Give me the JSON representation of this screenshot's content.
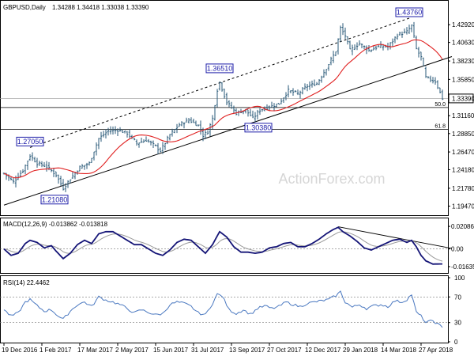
{
  "chart_data": [
    {
      "type": "candlestick",
      "title": "GBPUSD,Daily",
      "ohlc_text": "1.34288 1.34418 1.33038 1.33390",
      "ylim": [
        1.185,
        1.455
      ],
      "y_ticks": [
        "1.42920",
        "1.40630",
        "1.38230",
        "1.35850",
        "1.33390",
        "1.31160",
        "1.28850",
        "1.26470",
        "1.24180",
        "1.21780",
        "1.19470"
      ],
      "y_tick_values": [
        1.4292,
        1.4063,
        1.3823,
        1.3585,
        1.3339,
        1.3116,
        1.2885,
        1.2647,
        1.2418,
        1.2178,
        1.1947
      ],
      "last_price": "1.33390",
      "fib_levels": [
        {
          "label": "50.0",
          "value": 1.3222
        },
        {
          "label": "61.8",
          "value": 1.2938
        }
      ],
      "annotations": [
        {
          "label": "1.27050",
          "index": 11,
          "value": 1.2705
        },
        {
          "label": "1.21080",
          "index": 25,
          "value": 1.2108
        },
        {
          "label": "1.36510",
          "index": 91,
          "value": 1.3651
        },
        {
          "label": "1.30380",
          "index": 105,
          "value": 1.3038
        },
        {
          "label": "1.43760",
          "index": 171,
          "value": 1.4376
        }
      ],
      "x_labels": [
        "19 Dec 2016",
        "1 Feb 2017",
        "17 Mar 2017",
        "2 May 2017",
        "15 Jun 2017",
        "31 Jul 2017",
        "13 Sep 2017",
        "27 Oct 2017",
        "12 Dec 2017",
        "29 Jan 2018",
        "14 Mar 2018",
        "27 Apr 2018"
      ],
      "x_label_index": [
        0,
        16,
        32,
        48,
        64,
        80,
        96,
        112,
        128,
        144,
        160,
        176
      ],
      "close_anchors": [
        [
          0,
          1.237
        ],
        [
          4,
          1.226
        ],
        [
          8,
          1.241
        ],
        [
          11,
          1.26
        ],
        [
          14,
          1.25
        ],
        [
          18,
          1.246
        ],
        [
          22,
          1.235
        ],
        [
          25,
          1.218
        ],
        [
          28,
          1.23
        ],
        [
          32,
          1.245
        ],
        [
          36,
          1.25
        ],
        [
          40,
          1.282
        ],
        [
          44,
          1.292
        ],
        [
          48,
          1.293
        ],
        [
          52,
          1.289
        ],
        [
          56,
          1.276
        ],
        [
          60,
          1.28
        ],
        [
          64,
          1.272
        ],
        [
          66,
          1.266
        ],
        [
          70,
          1.287
        ],
        [
          74,
          1.3
        ],
        [
          78,
          1.306
        ],
        [
          82,
          1.299
        ],
        [
          84,
          1.286
        ],
        [
          86,
          1.291
        ],
        [
          88,
          1.308
        ],
        [
          90,
          1.345
        ],
        [
          91,
          1.355
        ],
        [
          94,
          1.329
        ],
        [
          98,
          1.315
        ],
        [
          102,
          1.319
        ],
        [
          105,
          1.308
        ],
        [
          108,
          1.319
        ],
        [
          112,
          1.323
        ],
        [
          116,
          1.327
        ],
        [
          120,
          1.344
        ],
        [
          124,
          1.34
        ],
        [
          128,
          1.35
        ],
        [
          132,
          1.353
        ],
        [
          136,
          1.373
        ],
        [
          140,
          1.395
        ],
        [
          142,
          1.425
        ],
        [
          144,
          1.415
        ],
        [
          146,
          1.396
        ],
        [
          150,
          1.405
        ],
        [
          154,
          1.396
        ],
        [
          158,
          1.401
        ],
        [
          162,
          1.401
        ],
        [
          166,
          1.416
        ],
        [
          170,
          1.42
        ],
        [
          172,
          1.428
        ],
        [
          174,
          1.398
        ],
        [
          176,
          1.387
        ],
        [
          178,
          1.361
        ],
        [
          182,
          1.356
        ],
        [
          185,
          1.3339
        ]
      ],
      "series": [
        {
          "name": "GBPUSD,Daily",
          "color": "#2a5a78"
        },
        {
          "color": "#e02020"
        }
      ],
      "trendlines": [
        {
          "style": "solid",
          "from": [
            0,
            1.196
          ],
          "to": [
            189,
            1.388
          ]
        },
        {
          "style": "dashed",
          "from": [
            11,
            1.2705
          ],
          "to": [
            171,
            1.4376
          ]
        }
      ]
    },
    {
      "type": "line",
      "title": "MACD(12,26,9) -0.013862 -0.013818",
      "ylim": [
        -0.0215,
        0.0268
      ],
      "y_ticks": [
        "0.020861",
        "0.00",
        "-0.016357"
      ],
      "y_tick_values": [
        0.020861,
        0.0,
        -0.016357
      ],
      "macd_anchors": [
        [
          0,
          0.0
        ],
        [
          3,
          -0.006
        ],
        [
          6,
          -0.004
        ],
        [
          9,
          0.005
        ],
        [
          11,
          0.008
        ],
        [
          14,
          0.006
        ],
        [
          17,
          0.001
        ],
        [
          20,
          0.003
        ],
        [
          22,
          -0.002
        ],
        [
          25,
          -0.009
        ],
        [
          28,
          -0.004
        ],
        [
          31,
          0.004
        ],
        [
          34,
          0.008
        ],
        [
          37,
          0.005
        ],
        [
          40,
          0.014
        ],
        [
          43,
          0.016
        ],
        [
          46,
          0.016
        ],
        [
          49,
          0.012
        ],
        [
          52,
          0.008
        ],
        [
          55,
          0.004
        ],
        [
          58,
          0.004
        ],
        [
          61,
          0.0
        ],
        [
          64,
          -0.004
        ],
        [
          67,
          -0.006
        ],
        [
          70,
          -0.001
        ],
        [
          73,
          0.006
        ],
        [
          76,
          0.009
        ],
        [
          79,
          0.008
        ],
        [
          82,
          0.002
        ],
        [
          85,
          -0.004
        ],
        [
          88,
          0.004
        ],
        [
          91,
          0.016
        ],
        [
          94,
          0.011
        ],
        [
          97,
          0.002
        ],
        [
          100,
          -0.003
        ],
        [
          103,
          -0.003
        ],
        [
          106,
          -0.004
        ],
        [
          109,
          -0.003
        ],
        [
          112,
          0.001
        ],
        [
          115,
          0.002
        ],
        [
          118,
          0.005
        ],
        [
          121,
          0.006
        ],
        [
          124,
          0.002
        ],
        [
          127,
          0.002
        ],
        [
          130,
          0.005
        ],
        [
          133,
          0.009
        ],
        [
          136,
          0.014
        ],
        [
          139,
          0.018
        ],
        [
          141,
          0.02
        ],
        [
          143,
          0.016
        ],
        [
          146,
          0.012
        ],
        [
          149,
          0.007
        ],
        [
          152,
          0.001
        ],
        [
          155,
          -0.001
        ],
        [
          158,
          0.002
        ],
        [
          161,
          0.005
        ],
        [
          164,
          0.008
        ],
        [
          167,
          0.009
        ],
        [
          170,
          0.006
        ],
        [
          172,
          0.008
        ],
        [
          174,
          0.002
        ],
        [
          176,
          -0.006
        ],
        [
          178,
          -0.011
        ],
        [
          181,
          -0.014
        ],
        [
          185,
          -0.0139
        ]
      ],
      "series": [
        {
          "name": "MACD",
          "color": "#151577"
        },
        {
          "color": "#9a9a9a"
        }
      ],
      "trendlines": [
        {
          "style": "solid",
          "from": [
            141,
            0.0205
          ],
          "to": [
            189,
            0.0005
          ]
        }
      ]
    },
    {
      "type": "line",
      "title": "RSI(14) 22.4462",
      "ylim": [
        0,
        100
      ],
      "y_ticks": [
        "100",
        "70",
        "30",
        "0"
      ],
      "y_tick_values": [
        100,
        70,
        30,
        0
      ],
      "rsi_anchors": [
        [
          0,
          50
        ],
        [
          3,
          40
        ],
        [
          6,
          45
        ],
        [
          9,
          62
        ],
        [
          11,
          66
        ],
        [
          14,
          56
        ],
        [
          17,
          48
        ],
        [
          20,
          50
        ],
        [
          23,
          40
        ],
        [
          25,
          35
        ],
        [
          28,
          48
        ],
        [
          31,
          58
        ],
        [
          34,
          62
        ],
        [
          37,
          55
        ],
        [
          40,
          70
        ],
        [
          43,
          65
        ],
        [
          46,
          62
        ],
        [
          49,
          58
        ],
        [
          52,
          52
        ],
        [
          55,
          45
        ],
        [
          58,
          50
        ],
        [
          61,
          46
        ],
        [
          64,
          42
        ],
        [
          67,
          44
        ],
        [
          70,
          58
        ],
        [
          73,
          62
        ],
        [
          76,
          60
        ],
        [
          79,
          55
        ],
        [
          82,
          45
        ],
        [
          85,
          42
        ],
        [
          88,
          60
        ],
        [
          90,
          74
        ],
        [
          92,
          72
        ],
        [
          95,
          50
        ],
        [
          98,
          44
        ],
        [
          101,
          50
        ],
        [
          104,
          43
        ],
        [
          107,
          52
        ],
        [
          110,
          56
        ],
        [
          113,
          52
        ],
        [
          116,
          55
        ],
        [
          119,
          62
        ],
        [
          122,
          58
        ],
        [
          125,
          55
        ],
        [
          128,
          60
        ],
        [
          131,
          62
        ],
        [
          134,
          64
        ],
        [
          137,
          66
        ],
        [
          140,
          72
        ],
        [
          142,
          78
        ],
        [
          144,
          62
        ],
        [
          147,
          54
        ],
        [
          150,
          58
        ],
        [
          153,
          52
        ],
        [
          156,
          56
        ],
        [
          159,
          58
        ],
        [
          162,
          55
        ],
        [
          165,
          64
        ],
        [
          168,
          62
        ],
        [
          170,
          66
        ],
        [
          172,
          74
        ],
        [
          174,
          46
        ],
        [
          176,
          40
        ],
        [
          178,
          30
        ],
        [
          181,
          33
        ],
        [
          185,
          22.45
        ]
      ],
      "series": [
        {
          "name": "RSI",
          "color": "#4a78c0"
        }
      ]
    }
  ],
  "watermark": "ActionForex.com"
}
